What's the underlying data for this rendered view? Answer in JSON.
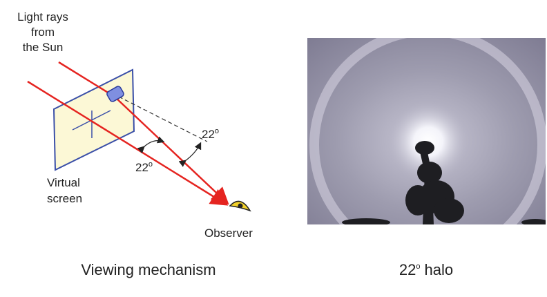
{
  "diagram": {
    "source_label": [
      "Light rays",
      "from",
      "the Sun"
    ],
    "angle_labels": [
      {
        "number": "22",
        "degree": "o"
      },
      {
        "number": "22",
        "degree": "o"
      }
    ],
    "screen_label": [
      "Virtual",
      "screen"
    ],
    "observer_label": "Observer",
    "left_caption": "Viewing mechanism",
    "right_caption": {
      "number": "22",
      "degree": "o",
      "text": " halo"
    }
  }
}
